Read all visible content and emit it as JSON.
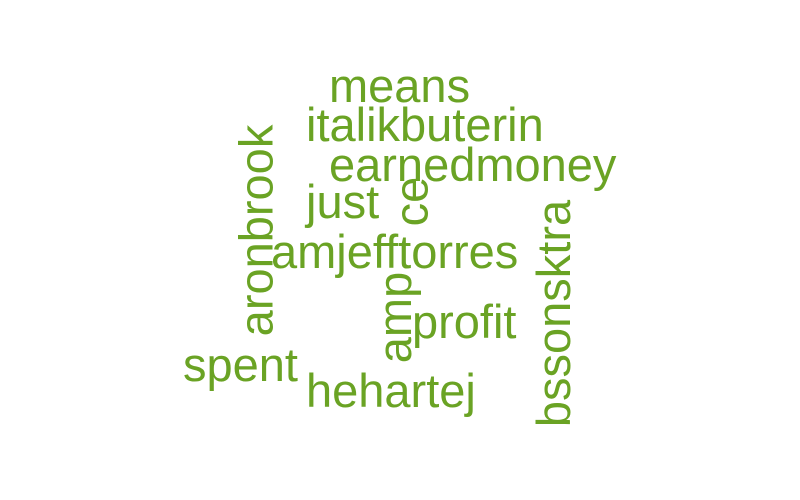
{
  "word_cloud": {
    "color": "#6aa324",
    "words": [
      {
        "text": "means",
        "orientation": "horizontal"
      },
      {
        "text": "italikbuterin",
        "orientation": "horizontal"
      },
      {
        "text": "earnedmoney",
        "orientation": "horizontal"
      },
      {
        "text": "just",
        "orientation": "horizontal"
      },
      {
        "text": "ce",
        "orientation": "vertical"
      },
      {
        "text": "aronbrook",
        "orientation": "vertical"
      },
      {
        "text": "amjefftorres",
        "orientation": "horizontal"
      },
      {
        "text": "bssonsktra",
        "orientation": "vertical"
      },
      {
        "text": "amp",
        "orientation": "vertical"
      },
      {
        "text": "profit",
        "orientation": "horizontal"
      },
      {
        "text": "spent",
        "orientation": "horizontal"
      },
      {
        "text": "hehartej",
        "orientation": "horizontal"
      }
    ]
  }
}
